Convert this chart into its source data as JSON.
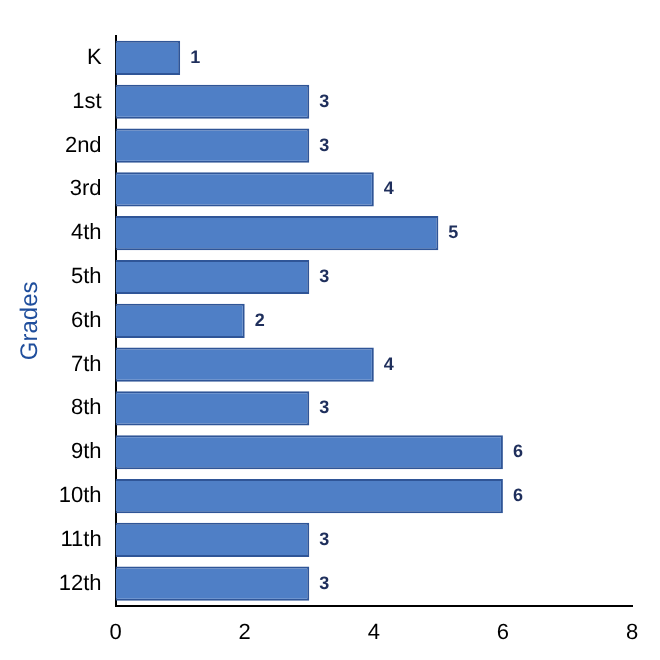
{
  "chart_data": {
    "type": "bar",
    "orientation": "horizontal",
    "ylabel": "Grades",
    "categories": [
      "K",
      "1st",
      "2nd",
      "3rd",
      "4th",
      "5th",
      "6th",
      "7th",
      "8th",
      "9th",
      "10th",
      "11th",
      "12th"
    ],
    "values": [
      1,
      3,
      3,
      4,
      5,
      3,
      2,
      4,
      3,
      6,
      6,
      3,
      3
    ],
    "color": "#4f7fc6",
    "xlim": [
      0,
      8
    ],
    "xticks": [
      0,
      2,
      4,
      6,
      8
    ],
    "data_labels": true,
    "grid": false,
    "legend": false
  }
}
